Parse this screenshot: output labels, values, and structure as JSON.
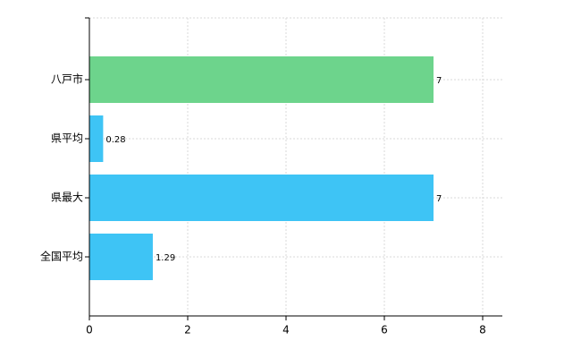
{
  "chart_data": {
    "type": "hbar",
    "categories": [
      "八戸市",
      "県平均",
      "県最大",
      "全国平均"
    ],
    "values": [
      7,
      0.28,
      7,
      1.29
    ],
    "colors": [
      "#6dd48c",
      "#3ec4f5",
      "#3ec4f5",
      "#3ec4f5"
    ],
    "xlim": [
      0,
      8.4
    ],
    "xticks": [
      0,
      2,
      4,
      6,
      8
    ],
    "grid": true
  }
}
